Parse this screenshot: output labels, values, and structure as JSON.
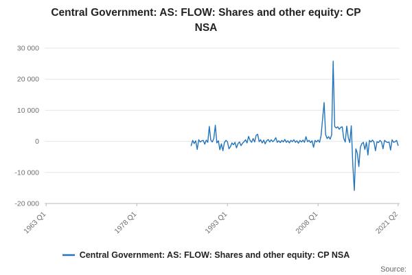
{
  "title": "Central Government: AS: FLOW: Shares and other equity: CP NSA",
  "legend": {
    "label": "Central Government: AS: FLOW: Shares and other equity: CP NSA"
  },
  "source_label": "Source:",
  "colors": {
    "line": "#2073bc",
    "grid": "#e6e6e6",
    "axis": "#b9b9b9",
    "tick_text": "#6f6f6f"
  },
  "chart_data": {
    "type": "line",
    "title": "Central Government: AS: FLOW: Shares and other equity: CP NSA",
    "xlabel": "",
    "ylabel": "",
    "legend_position": "bottom",
    "grid": true,
    "xlim": [
      1962.75,
      2021.5
    ],
    "ylim": [
      -20000,
      30000
    ],
    "yticks": [
      {
        "value": 30000,
        "label": "30 000"
      },
      {
        "value": 20000,
        "label": "20 000"
      },
      {
        "value": 10000,
        "label": "10 000"
      },
      {
        "value": 0,
        "label": "0"
      },
      {
        "value": -10000,
        "label": "-10 000"
      },
      {
        "value": -20000,
        "label": "-20 000"
      }
    ],
    "xticks": [
      {
        "value": 1963.0,
        "label": "1963 Q1"
      },
      {
        "value": 1978.0,
        "label": "1978 Q1"
      },
      {
        "value": 1993.0,
        "label": "1993 Q1"
      },
      {
        "value": 2008.0,
        "label": "2008 Q1"
      },
      {
        "value": 2021.25,
        "label": "2021 Q2"
      }
    ],
    "series": [
      {
        "name": "Central Government: AS: FLOW: Shares and other equity: CP NSA",
        "start_year": 1987,
        "start_period": "Q1",
        "period_step_years": 0.25,
        "values": [
          -1400,
          300,
          -700,
          200,
          -2600,
          500,
          -200,
          150,
          300,
          -900,
          400,
          -300,
          4800,
          400,
          -200,
          900,
          5200,
          -500,
          200,
          -2700,
          -800,
          -3000,
          -400,
          300,
          -100,
          -2400,
          -1700,
          -500,
          -1100,
          -300,
          -2100,
          -700,
          -200,
          -1400,
          -600,
          -100,
          500,
          -500,
          1600,
          300,
          -300,
          900,
          -200,
          1900,
          2300,
          -100,
          500,
          -500,
          400,
          -800,
          200,
          600,
          -200,
          500,
          -100,
          300,
          1200,
          -300,
          200,
          -400,
          300,
          -200,
          600,
          -300,
          200,
          -500,
          300,
          -100,
          500,
          -300,
          200,
          -600,
          300,
          -200,
          400,
          -300,
          1500,
          -100,
          300,
          -400,
          200,
          -1900,
          300,
          -200,
          400,
          -300,
          1900,
          7200,
          12500,
          2200,
          900,
          1500,
          700,
          2100,
          25800,
          4800,
          4300,
          4700,
          3900,
          4500,
          4700,
          900,
          -200,
          4900,
          1200,
          -400,
          5000,
          -7600,
          -15800,
          -2400,
          -3800,
          -8100,
          -1900,
          -700,
          -300,
          -2600,
          -300,
          -4400,
          300,
          -200,
          400,
          -200,
          -3000,
          -100,
          -400,
          300,
          -200,
          -2400,
          300,
          -100,
          -400,
          -200,
          -2800,
          500,
          -300,
          -100,
          300,
          -1300
        ]
      }
    ]
  }
}
